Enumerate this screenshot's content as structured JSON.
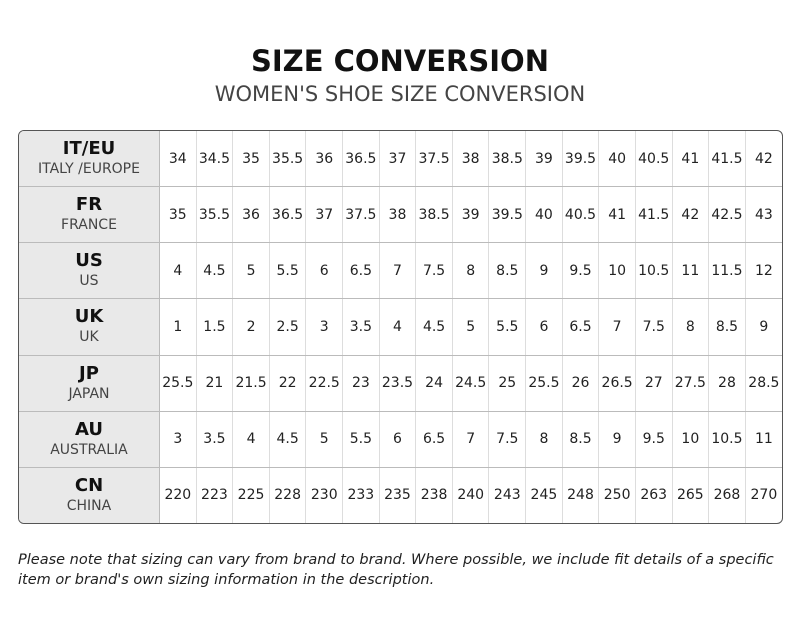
{
  "header": {
    "title": "SIZE CONVERSION",
    "subtitle": "WOMEN'S SHOE SIZE CONVERSION"
  },
  "table": {
    "rows": [
      {
        "code": "IT/EU",
        "name": "ITALY /EUROPE",
        "values": [
          "34",
          "34.5",
          "35",
          "35.5",
          "36",
          "36.5",
          "37",
          "37.5",
          "38",
          "38.5",
          "39",
          "39.5",
          "40",
          "40.5",
          "41",
          "41.5",
          "42"
        ]
      },
      {
        "code": "FR",
        "name": "FRANCE",
        "values": [
          "35",
          "35.5",
          "36",
          "36.5",
          "37",
          "37.5",
          "38",
          "38.5",
          "39",
          "39.5",
          "40",
          "40.5",
          "41",
          "41.5",
          "42",
          "42.5",
          "43"
        ]
      },
      {
        "code": "US",
        "name": "US",
        "values": [
          "4",
          "4.5",
          "5",
          "5.5",
          "6",
          "6.5",
          "7",
          "7.5",
          "8",
          "8.5",
          "9",
          "9.5",
          "10",
          "10.5",
          "11",
          "11.5",
          "12"
        ]
      },
      {
        "code": "UK",
        "name": "UK",
        "values": [
          "1",
          "1.5",
          "2",
          "2.5",
          "3",
          "3.5",
          "4",
          "4.5",
          "5",
          "5.5",
          "6",
          "6.5",
          "7",
          "7.5",
          "8",
          "8.5",
          "9"
        ]
      },
      {
        "code": "JP",
        "name": "JAPAN",
        "values": [
          "25.5",
          "21",
          "21.5",
          "22",
          "22.5",
          "23",
          "23.5",
          "24",
          "24.5",
          "25",
          "25.5",
          "26",
          "26.5",
          "27",
          "27.5",
          "28",
          "28.5"
        ]
      },
      {
        "code": "AU",
        "name": "AUSTRALIA",
        "values": [
          "3",
          "3.5",
          "4",
          "4.5",
          "5",
          "5.5",
          "6",
          "6.5",
          "7",
          "7.5",
          "8",
          "8.5",
          "9",
          "9.5",
          "10",
          "10.5",
          "11"
        ]
      },
      {
        "code": "CN",
        "name": "CHINA",
        "values": [
          "220",
          "223",
          "225",
          "228",
          "230",
          "233",
          "235",
          "238",
          "240",
          "243",
          "245",
          "248",
          "250",
          "263",
          "265",
          "268",
          "270"
        ]
      }
    ]
  },
  "note": "Please note that sizing can vary from brand to brand. Where possible, we include fit details of a specific item or brand's own sizing information in the description."
}
